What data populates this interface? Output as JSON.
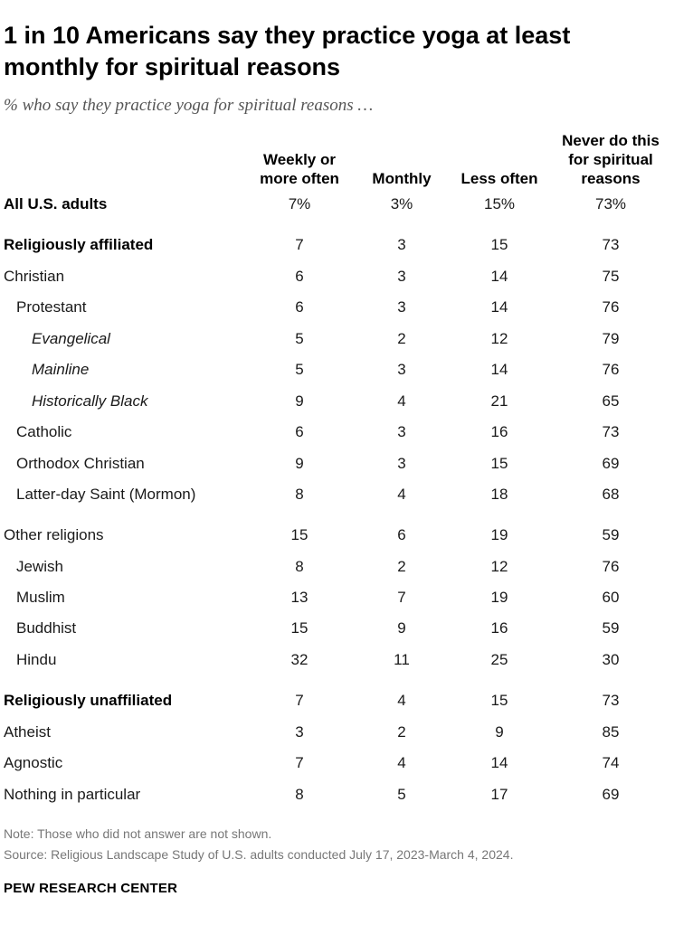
{
  "chart_data": {
    "type": "table",
    "title": "1 in 10 Americans say they practice yoga at least monthly for spiritual reasons",
    "subtitle": "% who say they practice yoga for spiritual reasons …",
    "columns": [
      "Weekly or\nmore often",
      "Monthly",
      "Less often",
      "Never do this\nfor spiritual\nreasons"
    ],
    "rows": [
      {
        "label": "All U.S. adults",
        "values": [
          "7%",
          "3%",
          "15%",
          "73%"
        ],
        "style": "bold",
        "indent": 0
      },
      {
        "label": "Religiously affiliated",
        "values": [
          "7",
          "3",
          "15",
          "73"
        ],
        "style": "bold",
        "indent": 0
      },
      {
        "label": "Christian",
        "values": [
          "6",
          "3",
          "14",
          "75"
        ],
        "style": "normal",
        "indent": 0
      },
      {
        "label": "Protestant",
        "values": [
          "6",
          "3",
          "14",
          "76"
        ],
        "style": "normal",
        "indent": 1
      },
      {
        "label": "Evangelical",
        "values": [
          "5",
          "2",
          "12",
          "79"
        ],
        "style": "italic",
        "indent": 2
      },
      {
        "label": "Mainline",
        "values": [
          "5",
          "3",
          "14",
          "76"
        ],
        "style": "italic",
        "indent": 2
      },
      {
        "label": "Historically Black",
        "values": [
          "9",
          "4",
          "21",
          "65"
        ],
        "style": "italic",
        "indent": 2
      },
      {
        "label": "Catholic",
        "values": [
          "6",
          "3",
          "16",
          "73"
        ],
        "style": "normal",
        "indent": 1
      },
      {
        "label": "Orthodox Christian",
        "values": [
          "9",
          "3",
          "15",
          "69"
        ],
        "style": "normal",
        "indent": 1
      },
      {
        "label": "Latter-day Saint (Mormon)",
        "values": [
          "8",
          "4",
          "18",
          "68"
        ],
        "style": "normal",
        "indent": 1
      },
      {
        "label": "Other religions",
        "values": [
          "15",
          "6",
          "19",
          "59"
        ],
        "style": "normal",
        "indent": 0
      },
      {
        "label": "Jewish",
        "values": [
          "8",
          "2",
          "12",
          "76"
        ],
        "style": "normal",
        "indent": 1
      },
      {
        "label": "Muslim",
        "values": [
          "13",
          "7",
          "19",
          "60"
        ],
        "style": "normal",
        "indent": 1
      },
      {
        "label": "Buddhist",
        "values": [
          "15",
          "9",
          "16",
          "59"
        ],
        "style": "normal",
        "indent": 1
      },
      {
        "label": "Hindu",
        "values": [
          "32",
          "11",
          "25",
          "30"
        ],
        "style": "normal",
        "indent": 1
      },
      {
        "label": "Religiously unaffiliated",
        "values": [
          "7",
          "4",
          "15",
          "73"
        ],
        "style": "bold",
        "indent": 0
      },
      {
        "label": "Atheist",
        "values": [
          "3",
          "2",
          "9",
          "85"
        ],
        "style": "normal",
        "indent": 0
      },
      {
        "label": "Agnostic",
        "values": [
          "7",
          "4",
          "14",
          "74"
        ],
        "style": "normal",
        "indent": 0
      },
      {
        "label": "Nothing in particular",
        "values": [
          "8",
          "5",
          "17",
          "69"
        ],
        "style": "normal",
        "indent": 0
      }
    ],
    "note": "Note: Those who did not answer are not shown.",
    "source": "Source: Religious Landscape Study of U.S. adults conducted July 17, 2023-March 4, 2024.",
    "brand": "PEW RESEARCH CENTER"
  }
}
